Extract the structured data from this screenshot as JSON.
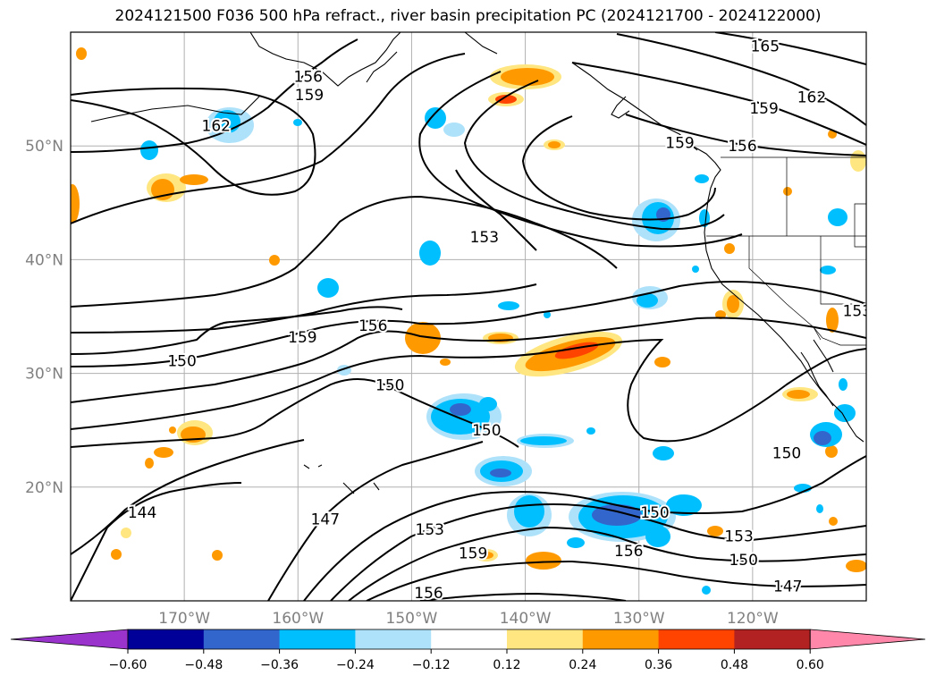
{
  "title": "2024121500 F036 500 hPa refract., river basin precipitation PC (2024121700 - 2024122000)",
  "map": {
    "lat_labels": [
      {
        "text": "50°N",
        "lat": 50
      },
      {
        "text": "40°N",
        "lat": 40
      },
      {
        "text": "30°N",
        "lat": 30
      },
      {
        "text": "20°N",
        "lat": 20
      }
    ],
    "lon_labels": [
      {
        "text": "170°W",
        "lon": -170
      },
      {
        "text": "160°W",
        "lon": -160
      },
      {
        "text": "150°W",
        "lon": -150
      },
      {
        "text": "140°W",
        "lon": -140
      },
      {
        "text": "130°W",
        "lon": -130
      },
      {
        "text": "120°W",
        "lon": -120
      }
    ],
    "extent": {
      "lon_min": -180,
      "lon_max": -110,
      "lat_min": 10,
      "lat_max": 60
    },
    "contour_labels": [
      {
        "text": "165",
        "lon": -118.9,
        "lat": 58.8
      },
      {
        "text": "162",
        "lon": -114.8,
        "lat": 54.3
      },
      {
        "text": "159",
        "lon": -119.0,
        "lat": 53.3
      },
      {
        "text": "156",
        "lon": -120.9,
        "lat": 50.0
      },
      {
        "text": "159",
        "lon": -126.4,
        "lat": 50.3
      },
      {
        "text": "156",
        "lon": -159.1,
        "lat": 56.1
      },
      {
        "text": "159",
        "lon": -159.0,
        "lat": 54.5
      },
      {
        "text": "162",
        "lon": -167.2,
        "lat": 51.8
      },
      {
        "text": "153",
        "lon": -143.6,
        "lat": 42.0
      },
      {
        "text": "153",
        "lon": -110.8,
        "lat": 35.5
      },
      {
        "text": "159",
        "lon": -159.6,
        "lat": 33.2
      },
      {
        "text": "156",
        "lon": -153.4,
        "lat": 34.2
      },
      {
        "text": "150",
        "lon": -170.2,
        "lat": 31.1
      },
      {
        "text": "150",
        "lon": -151.9,
        "lat": 29.0
      },
      {
        "text": "150",
        "lon": -143.4,
        "lat": 25.0
      },
      {
        "text": "150",
        "lon": -117.0,
        "lat": 23.0
      },
      {
        "text": "150",
        "lon": -128.6,
        "lat": 17.8
      },
      {
        "text": "153",
        "lon": -121.2,
        "lat": 15.7
      },
      {
        "text": "150",
        "lon": -120.8,
        "lat": 13.6
      },
      {
        "text": "147",
        "lon": -116.9,
        "lat": 11.3
      },
      {
        "text": "147",
        "lon": -157.6,
        "lat": 17.2
      },
      {
        "text": "153",
        "lon": -148.4,
        "lat": 16.3
      },
      {
        "text": "159",
        "lon": -144.6,
        "lat": 14.2
      },
      {
        "text": "156",
        "lon": -130.9,
        "lat": 14.4
      },
      {
        "text": "156",
        "lon": -148.5,
        "lat": 10.7
      },
      {
        "text": "144",
        "lon": -173.7,
        "lat": 17.8
      }
    ]
  },
  "colorbar": {
    "ticks": [
      "−0.60",
      "−0.48",
      "−0.36",
      "−0.24",
      "−0.12",
      "0.12",
      "0.24",
      "0.36",
      "0.48",
      "0.60"
    ],
    "colors": [
      "#9933cc",
      "#000099",
      "#3366cc",
      "#00bfff",
      "#aee2fa",
      "#ffffff",
      "#ffe680",
      "#ff9900",
      "#ff4400",
      "#b22222",
      "#ff88aa"
    ]
  }
}
